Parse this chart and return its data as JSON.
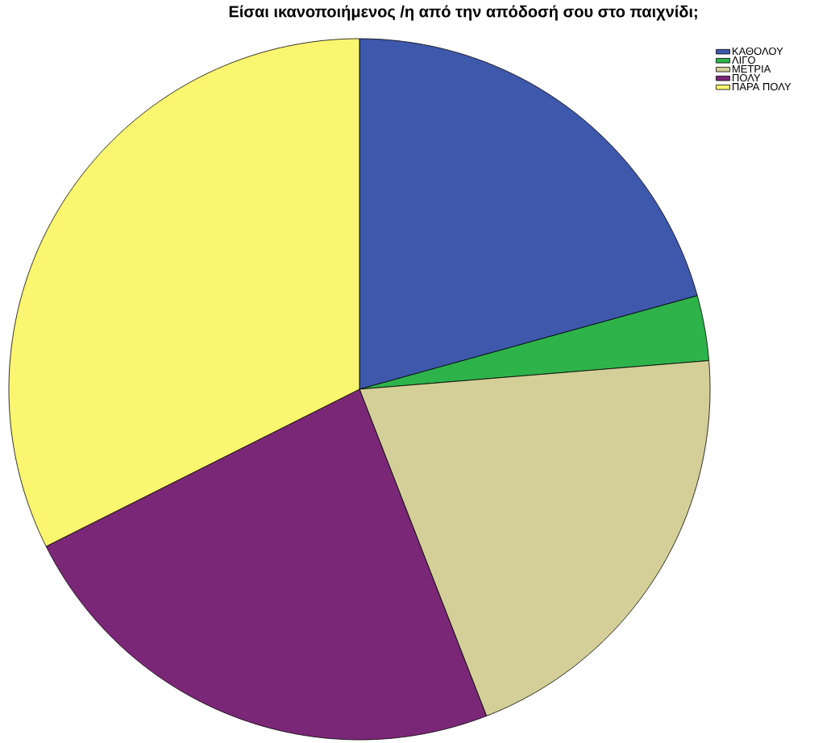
{
  "chart_data": {
    "type": "pie",
    "title": "Είσαι ικανοποιήμενος /η από την απόδοσή σου στο παιχνίδι;",
    "categories": [
      "ΚΑΘΟΛΟΥ",
      "ΛΙΓΟ",
      "ΜΕΤΡΙΑ",
      "ΠΟΛΥ",
      "ΠΑΡΑ ΠΟΛΥ"
    ],
    "values": [
      20.7,
      3.0,
      20.4,
      23.5,
      32.4
    ],
    "colors": [
      "#3e58ac",
      "#2eb34b",
      "#d4cf98",
      "#7b2777",
      "#fbf66f"
    ],
    "legend": "top right"
  }
}
